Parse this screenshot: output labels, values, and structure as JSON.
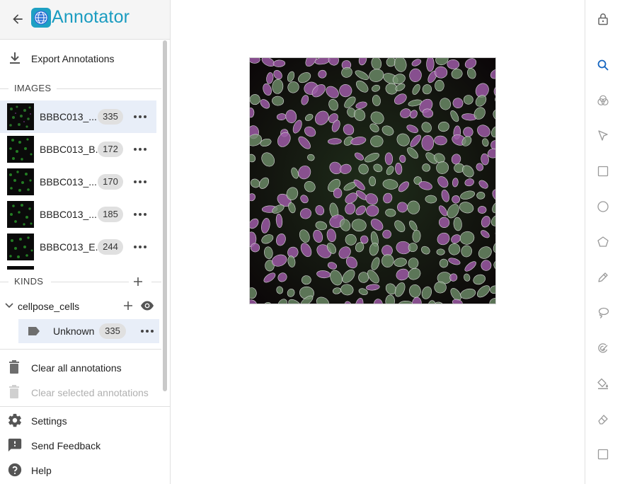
{
  "app": {
    "title": "Annotator"
  },
  "sidebar": {
    "export_label": "Export Annotations",
    "images_header": "IMAGES",
    "images": [
      {
        "name": "BBBC013_...",
        "count": "335",
        "selected": true
      },
      {
        "name": "BBBC013_B...",
        "count": "172",
        "selected": false
      },
      {
        "name": "BBBC013_...",
        "count": "170",
        "selected": false
      },
      {
        "name": "BBBC013_...",
        "count": "185",
        "selected": false
      },
      {
        "name": "BBBC013_E...",
        "count": "244",
        "selected": false
      }
    ],
    "kinds_header": "KINDS",
    "kinds": [
      {
        "name": "cellpose_cells",
        "children": [
          {
            "name": "Unknown",
            "count": "335"
          }
        ]
      }
    ],
    "clear_all_label": "Clear all annotations",
    "clear_selected_label": "Clear selected annotations",
    "settings_label": "Settings",
    "feedback_label": "Send Feedback",
    "help_label": "Help"
  },
  "toolbar": {
    "tools": [
      "lock-icon",
      "zoom-icon",
      "color-adjust-icon",
      "pointer-select-icon",
      "rectangle-icon",
      "ellipse-icon",
      "polygon-icon",
      "pen-icon",
      "lasso-icon",
      "magic-wand-icon",
      "bucket-fill-icon",
      "eraser-icon",
      "object-select-icon"
    ],
    "active_tool": "zoom-icon"
  },
  "colors": {
    "accent": "#1a9cc0",
    "selected_row": "#e8eef8",
    "active_tool": "#1565c0"
  }
}
